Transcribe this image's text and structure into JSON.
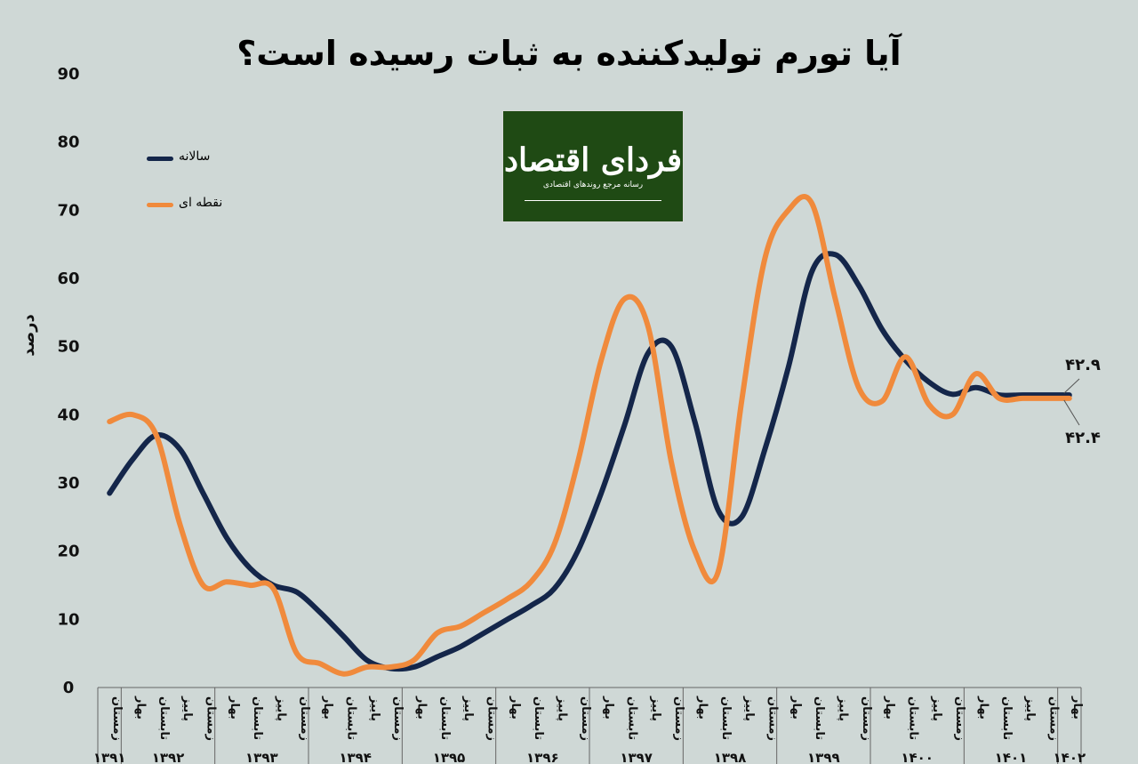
{
  "title": "آیا تورم تولیدکننده به ثبات رسیده است؟",
  "logo": {
    "main": "فردای اقتصاد",
    "sub": "رسانه مرجع روندهای اقتصادی"
  },
  "colors": {
    "background": "#cfd8d6",
    "annual": "#14264a",
    "point": "#f08a3c",
    "logo_bg": "#1f4a14"
  },
  "chart_data": {
    "type": "line",
    "title": "آیا تورم تولیدکننده به ثبات رسیده است؟",
    "ylabel": "درصد",
    "ylim": [
      0,
      90
    ],
    "yticks": [
      "0",
      "10",
      "20",
      "30",
      "40",
      "50",
      "60",
      "70",
      "80",
      "90"
    ],
    "grid": false,
    "legend_position": "top-left",
    "x": [
      "1391-زمستان",
      "1392-بهار",
      "1392-تابستان",
      "1392-پاییز",
      "1392-زمستان",
      "1393-بهار",
      "1393-تابستان",
      "1393-پاییز",
      "1393-زمستان",
      "1394-بهار",
      "1394-تابستان",
      "1394-پاییز",
      "1394-زمستان",
      "1395-بهار",
      "1395-تابستان",
      "1395-پاییز",
      "1395-زمستان",
      "1396-بهار",
      "1396-تابستان",
      "1396-پاییز",
      "1396-زمستان",
      "1397-بهار",
      "1397-تابستان",
      "1397-پاییز",
      "1397-زمستان",
      "1398-بهار",
      "1398-تابستان",
      "1398-پاییز",
      "1398-زمستان",
      "1399-بهار",
      "1399-تابستان",
      "1399-پاییز",
      "1399-زمستان",
      "1400-بهار",
      "1400-تابستان",
      "1400-پاییز",
      "1400-زمستان",
      "1401-بهار",
      "1401-تابستان",
      "1401-پاییز",
      "1401-زمستان",
      "1402-بهار"
    ],
    "season_labels": [
      "زمستان",
      "بهار",
      "تابستان",
      "پاییز",
      "زمستان",
      "بهار",
      "تابستان",
      "پاییز",
      "زمستان",
      "بهار",
      "تابستان",
      "پاییز",
      "زمستان",
      "بهار",
      "تابستان",
      "پاییز",
      "زمستان",
      "بهار",
      "تابستان",
      "پاییز",
      "زمستان",
      "بهار",
      "تابستان",
      "پاییز",
      "زمستان",
      "بهار",
      "تابستان",
      "پاییز",
      "زمستان",
      "بهار",
      "تابستان",
      "پاییز",
      "زمستان",
      "بهار",
      "تابستان",
      "پاییز",
      "زمستان",
      "بهار",
      "تابستان",
      "پاییز",
      "زمستان",
      "بهار"
    ],
    "year_labels": [
      "۱۳۹۱",
      "۱۳۹۲",
      "۱۳۹۳",
      "۱۳۹۴",
      "۱۳۹۵",
      "۱۳۹۶",
      "۱۳۹۷",
      "۱۳۹۸",
      "۱۳۹۹",
      "۱۴۰۰",
      "۱۴۰۱",
      "۱۴۰۲"
    ],
    "year_spans": [
      1,
      4,
      4,
      4,
      4,
      4,
      4,
      4,
      4,
      4,
      4,
      1
    ],
    "series": [
      {
        "name": "سالانه",
        "color": "#14264a",
        "values": [
          28.5,
          33.5,
          37,
          35,
          28.5,
          22,
          17.5,
          15,
          14,
          11,
          7.5,
          4,
          2.8,
          3,
          4.5,
          6,
          8,
          10,
          12,
          14.5,
          20,
          28.5,
          38.5,
          49,
          50,
          39,
          26,
          25,
          35,
          47,
          61,
          63.5,
          59,
          52.5,
          48,
          44.8,
          43,
          44,
          42.9,
          42.9,
          42.9,
          42.9
        ]
      },
      {
        "name": "نقطه ای",
        "color": "#f08a3c",
        "values": [
          39,
          40,
          37,
          24,
          15,
          15.5,
          15,
          14.5,
          5,
          3.5,
          2,
          3,
          3,
          4,
          8,
          9,
          11,
          13,
          15.5,
          21,
          33,
          48,
          57,
          53,
          33,
          20,
          17,
          42,
          63,
          70,
          71,
          57,
          44,
          42,
          48.5,
          41.5,
          40,
          46,
          42.4,
          42.4,
          42.4,
          42.4
        ]
      }
    ],
    "annotations": [
      "۴۲.۹",
      "۴۲.۴"
    ]
  }
}
